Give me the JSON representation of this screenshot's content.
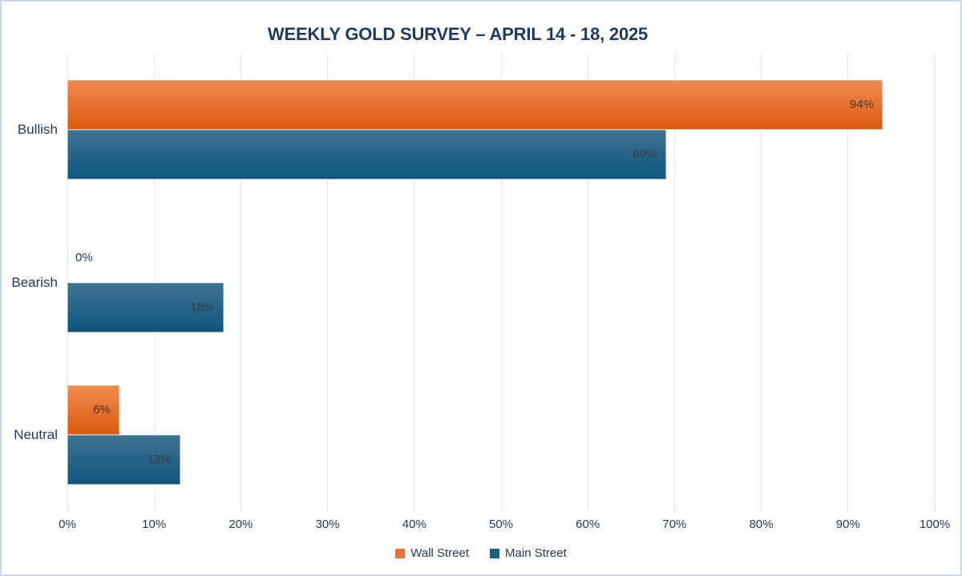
{
  "chart_data": {
    "type": "bar",
    "orientation": "horizontal",
    "title": "WEEKLY GOLD SURVEY – APRIL 14 - 18, 2025",
    "categories": [
      "Bullish",
      "Bearish",
      "Neutral"
    ],
    "series": [
      {
        "name": "Wall Street",
        "values": [
          94,
          0,
          6
        ],
        "color": "#E97132",
        "gradient_top": "#F08B50",
        "gradient_bottom": "#DC5A0E"
      },
      {
        "name": "Main Street",
        "values": [
          69,
          18,
          13
        ],
        "color": "#156082",
        "gradient_top": "#3F7392",
        "gradient_bottom": "#0E567E"
      }
    ],
    "x_ticks": [
      "0%",
      "10%",
      "20%",
      "30%",
      "40%",
      "50%",
      "60%",
      "70%",
      "80%",
      "90%",
      "100%"
    ],
    "xlim": [
      0,
      100
    ],
    "value_suffix": "%",
    "legend_position": "bottom",
    "grid": "vertical-only",
    "colors": {
      "title_text": "#1E3A5F",
      "axis_text": "#1F3A54",
      "gridline": "#D9E6F3",
      "canvas_border": "#C5DAEE",
      "value_label_inside": "#3B3B3B"
    }
  }
}
